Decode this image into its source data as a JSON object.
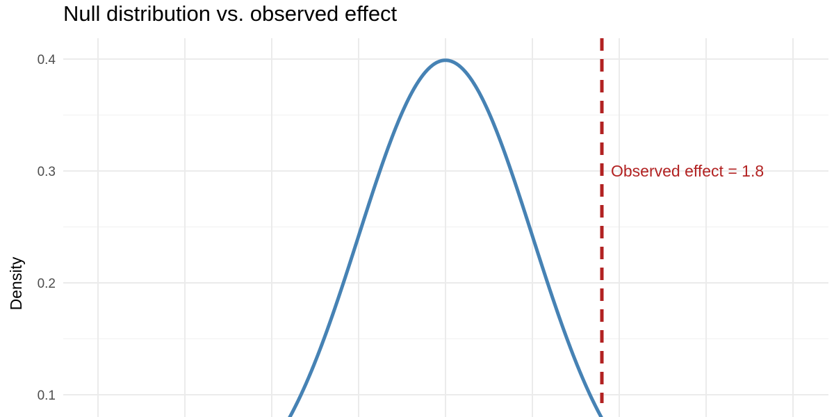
{
  "chart_data": {
    "type": "line",
    "title": "Null distribution vs. observed effect",
    "xlabel": "",
    "ylabel": "Density",
    "xlim": [
      -4,
      4
    ],
    "ylim": [
      0.08,
      0.42
    ],
    "x_gridlines": [
      -4,
      -3,
      -2,
      -1,
      0,
      1,
      2,
      3,
      4
    ],
    "y_ticks": [
      0.1,
      0.2,
      0.3,
      0.4
    ],
    "y_tick_labels": [
      "0.1",
      "0.2",
      "0.3",
      "0.4"
    ],
    "grid": true,
    "series": [
      {
        "distribution": "standard normal",
        "color": "#4682b4",
        "x": [
          -1.8,
          -1.6,
          -1.4,
          -1.2,
          -1.0,
          -0.8,
          -0.6,
          -0.4,
          -0.2,
          0.0,
          0.2,
          0.4,
          0.6,
          0.8,
          1.0,
          1.2,
          1.4,
          1.6,
          1.8
        ],
        "y": [
          0.079,
          0.111,
          0.15,
          0.194,
          0.242,
          0.29,
          0.333,
          0.368,
          0.391,
          0.399,
          0.391,
          0.368,
          0.333,
          0.29,
          0.242,
          0.194,
          0.15,
          0.111,
          0.079
        ]
      }
    ],
    "annotations": [
      {
        "type": "vline",
        "x": 1.8,
        "style": "dashed",
        "color": "#b22222",
        "label": "Observed effect = 1.8",
        "label_y": 0.3
      }
    ]
  }
}
